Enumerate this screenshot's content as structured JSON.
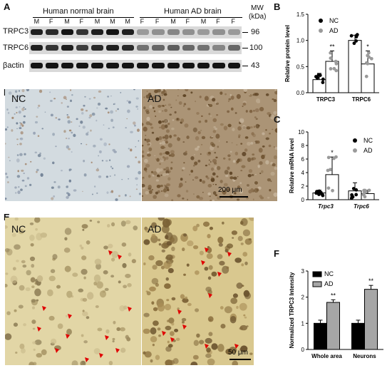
{
  "panels": {
    "A": "A",
    "B": "B",
    "C": "C",
    "D": "D",
    "E": "E",
    "F": "F"
  },
  "blot": {
    "group_normal": "Human normal brain",
    "group_ad": "Human AD brain",
    "mw_label": "MW",
    "mw_unit": "(kDa)",
    "lanes": [
      "M",
      "F",
      "M",
      "F",
      "M",
      "M",
      "M",
      "F",
      "F",
      "M",
      "F",
      "M",
      "F",
      "F"
    ],
    "rows": [
      {
        "label": "TRPC3",
        "mw": "96"
      },
      {
        "label": "TRPC6",
        "mw": "100"
      },
      {
        "label": "βactin",
        "mw": "43"
      }
    ]
  },
  "micrographs": {
    "d_nc": "NC",
    "d_ad": "AD",
    "d_scale": "200 μm",
    "e_nc": "NC",
    "e_ad": "AD",
    "e_scale": "50 μm"
  },
  "chart_data": [
    {
      "id": "B",
      "type": "bar",
      "ylabel": "Relative protein level",
      "categories": [
        "TRPC3",
        "TRPC6"
      ],
      "ylim": [
        0,
        1.5
      ],
      "yticks": [
        "0.0",
        "0.5",
        "1.0",
        "1.5"
      ],
      "legend": [
        "NC",
        "AD"
      ],
      "series": [
        {
          "name": "NC",
          "values": [
            0.25,
            1.0
          ],
          "errors": [
            0.12,
            0.1
          ]
        },
        {
          "name": "AD",
          "values": [
            0.6,
            0.55
          ],
          "errors": [
            0.2,
            0.25
          ]
        }
      ],
      "significance": [
        {
          "category": "TRPC3",
          "label": "**"
        },
        {
          "category": "TRPC6",
          "label": "*"
        }
      ],
      "legend_placement": "top-left"
    },
    {
      "id": "C",
      "type": "bar",
      "ylabel": "Relative mRNA level",
      "categories": [
        "Trpc3",
        "Trpc6"
      ],
      "ylim": [
        0,
        10
      ],
      "yticks": [
        "0",
        "2",
        "4",
        "6",
        "8",
        "10"
      ],
      "legend": [
        "NC",
        "AD"
      ],
      "series": [
        {
          "name": "NC",
          "values": [
            1.0,
            1.3
          ],
          "errors": [
            0.4,
            1.2
          ]
        },
        {
          "name": "AD",
          "values": [
            3.7,
            0.9
          ],
          "errors": [
            2.6,
            0.5
          ]
        }
      ],
      "significance": [
        {
          "category": "Trpc3",
          "label": "*"
        }
      ],
      "legend_placement": "top-right"
    },
    {
      "id": "F",
      "type": "bar",
      "ylabel": "Normalized TRPC3 Intensity",
      "categories": [
        "Whole area",
        "Neurons"
      ],
      "ylim": [
        0,
        3
      ],
      "yticks": [
        "0",
        "1",
        "2",
        "3"
      ],
      "legend": [
        "NC",
        "AD"
      ],
      "series": [
        {
          "name": "NC",
          "values": [
            1.0,
            1.0
          ],
          "errors": [
            0.12,
            0.12
          ],
          "color": "#000000"
        },
        {
          "name": "AD",
          "values": [
            1.8,
            2.3
          ],
          "errors": [
            0.1,
            0.15
          ],
          "color": "#a6a6a6"
        }
      ],
      "significance": [
        {
          "category": "Whole area",
          "label": "**"
        },
        {
          "category": "Neurons",
          "label": "**"
        }
      ],
      "legend_placement": "top-left"
    }
  ]
}
